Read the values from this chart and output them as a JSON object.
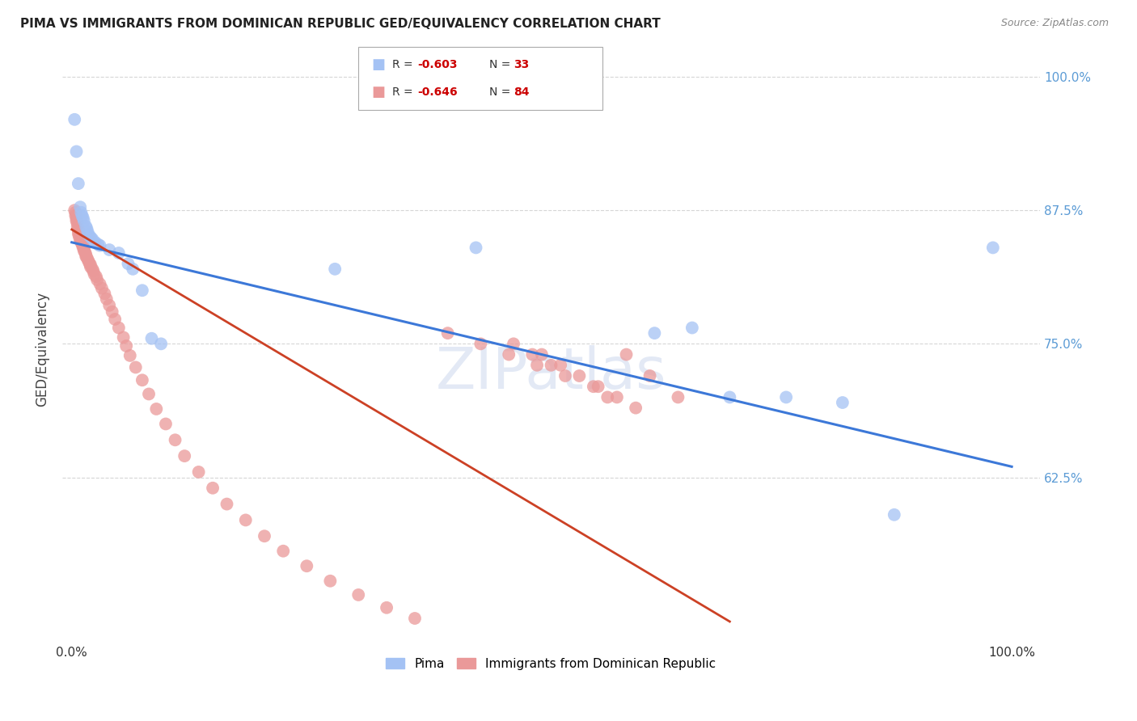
{
  "title": "PIMA VS IMMIGRANTS FROM DOMINICAN REPUBLIC GED/EQUIVALENCY CORRELATION CHART",
  "source": "Source: ZipAtlas.com",
  "ylabel": "GED/Equivalency",
  "blue_R": "-0.603",
  "blue_N": "33",
  "pink_R": "-0.646",
  "pink_N": "84",
  "blue_color": "#a4c2f4",
  "pink_color": "#ea9999",
  "blue_line_color": "#3c78d8",
  "pink_line_color": "#cc4125",
  "watermark": "ZIPatlas",
  "grid_color": "#cccccc",
  "background_color": "#ffffff",
  "blue_scatter_x": [
    0.003,
    0.005,
    0.007,
    0.009,
    0.01,
    0.011,
    0.012,
    0.013,
    0.015,
    0.016,
    0.017,
    0.018,
    0.02,
    0.022,
    0.025,
    0.028,
    0.03,
    0.04,
    0.05,
    0.06,
    0.065,
    0.075,
    0.085,
    0.095,
    0.28,
    0.43,
    0.62,
    0.66,
    0.7,
    0.76,
    0.82,
    0.875,
    0.98
  ],
  "blue_scatter_y": [
    0.96,
    0.93,
    0.9,
    0.878,
    0.873,
    0.87,
    0.868,
    0.865,
    0.86,
    0.858,
    0.855,
    0.852,
    0.85,
    0.848,
    0.845,
    0.843,
    0.842,
    0.838,
    0.835,
    0.825,
    0.82,
    0.8,
    0.755,
    0.75,
    0.82,
    0.84,
    0.76,
    0.765,
    0.7,
    0.7,
    0.695,
    0.59,
    0.84
  ],
  "pink_scatter_x": [
    0.003,
    0.004,
    0.004,
    0.005,
    0.005,
    0.005,
    0.006,
    0.006,
    0.007,
    0.007,
    0.007,
    0.008,
    0.008,
    0.009,
    0.009,
    0.01,
    0.01,
    0.011,
    0.012,
    0.012,
    0.013,
    0.013,
    0.014,
    0.015,
    0.015,
    0.016,
    0.017,
    0.018,
    0.019,
    0.02,
    0.02,
    0.022,
    0.023,
    0.024,
    0.026,
    0.027,
    0.03,
    0.032,
    0.035,
    0.037,
    0.04,
    0.043,
    0.046,
    0.05,
    0.055,
    0.058,
    0.062,
    0.068,
    0.075,
    0.082,
    0.09,
    0.1,
    0.11,
    0.12,
    0.135,
    0.15,
    0.165,
    0.185,
    0.205,
    0.225,
    0.25,
    0.275,
    0.305,
    0.335,
    0.365,
    0.4,
    0.435,
    0.465,
    0.495,
    0.525,
    0.555,
    0.57,
    0.59,
    0.615,
    0.645,
    0.5,
    0.52,
    0.54,
    0.56,
    0.58,
    0.6,
    0.47,
    0.49,
    0.51
  ],
  "pink_scatter_y": [
    0.875,
    0.873,
    0.87,
    0.87,
    0.867,
    0.865,
    0.863,
    0.86,
    0.858,
    0.856,
    0.853,
    0.853,
    0.85,
    0.85,
    0.847,
    0.847,
    0.845,
    0.843,
    0.842,
    0.84,
    0.84,
    0.837,
    0.836,
    0.834,
    0.832,
    0.831,
    0.829,
    0.827,
    0.825,
    0.824,
    0.822,
    0.82,
    0.818,
    0.815,
    0.813,
    0.81,
    0.806,
    0.802,
    0.797,
    0.792,
    0.786,
    0.78,
    0.773,
    0.765,
    0.756,
    0.748,
    0.739,
    0.728,
    0.716,
    0.703,
    0.689,
    0.675,
    0.66,
    0.645,
    0.63,
    0.615,
    0.6,
    0.585,
    0.57,
    0.556,
    0.542,
    0.528,
    0.515,
    0.503,
    0.493,
    0.76,
    0.75,
    0.74,
    0.73,
    0.72,
    0.71,
    0.7,
    0.74,
    0.72,
    0.7,
    0.74,
    0.73,
    0.72,
    0.71,
    0.7,
    0.69,
    0.75,
    0.74,
    0.73
  ],
  "blue_line_x": [
    0.0,
    1.0
  ],
  "blue_line_y": [
    0.845,
    0.635
  ],
  "pink_line_x": [
    0.0,
    0.7
  ],
  "pink_line_y": [
    0.857,
    0.49
  ],
  "xlim": [
    -0.01,
    1.03
  ],
  "ylim": [
    0.47,
    1.02
  ],
  "ytick_values": [
    0.625,
    0.75,
    0.875,
    1.0
  ],
  "ytick_labels": [
    "62.5%",
    "75.0%",
    "87.5%",
    "100.0%"
  ]
}
